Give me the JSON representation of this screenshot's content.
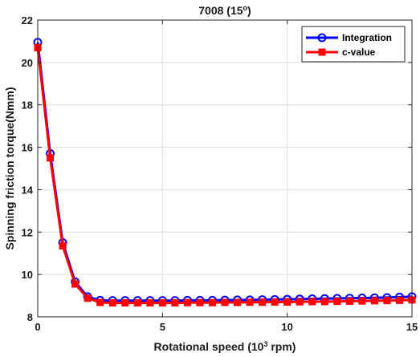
{
  "chart_data": {
    "type": "line",
    "title": {
      "main": "7008 (15",
      "sup": "o",
      "end": ")"
    },
    "xlabel": {
      "main": "Rotational speed (10",
      "sup": "3",
      "end": " rpm)"
    },
    "ylabel": "Spinning friction torque(Nmm)",
    "xlim": [
      0,
      15
    ],
    "ylim": [
      8,
      22
    ],
    "xticks": [
      0,
      5,
      10,
      15
    ],
    "yticks": [
      8,
      10,
      12,
      14,
      16,
      18,
      20,
      22
    ],
    "grid": true,
    "legend_position": "top-right",
    "x": [
      0,
      0.5,
      1,
      1.5,
      2,
      2.5,
      3,
      3.5,
      4,
      4.5,
      5,
      5.5,
      6,
      6.5,
      7,
      7.5,
      8,
      8.5,
      9,
      9.5,
      10,
      10.5,
      11,
      11.5,
      12,
      12.5,
      13,
      13.5,
      14,
      14.5,
      15
    ],
    "series": [
      {
        "name": "Integration",
        "color": "#0000ff",
        "marker": "circle",
        "values": [
          20.95,
          15.7,
          11.5,
          9.65,
          8.95,
          8.78,
          8.77,
          8.77,
          8.77,
          8.77,
          8.77,
          8.77,
          8.78,
          8.78,
          8.78,
          8.79,
          8.8,
          8.8,
          8.81,
          8.82,
          8.83,
          8.84,
          8.85,
          8.86,
          8.87,
          8.88,
          8.89,
          8.9,
          8.91,
          8.93,
          8.95
        ]
      },
      {
        "name": "c-value",
        "color": "#ff0000",
        "marker": "square",
        "values": [
          20.7,
          15.5,
          11.35,
          9.55,
          8.88,
          8.68,
          8.66,
          8.66,
          8.66,
          8.66,
          8.66,
          8.66,
          8.67,
          8.67,
          8.67,
          8.68,
          8.68,
          8.69,
          8.69,
          8.7,
          8.7,
          8.71,
          8.72,
          8.72,
          8.73,
          8.74,
          8.75,
          8.76,
          8.77,
          8.78,
          8.8
        ]
      }
    ]
  }
}
